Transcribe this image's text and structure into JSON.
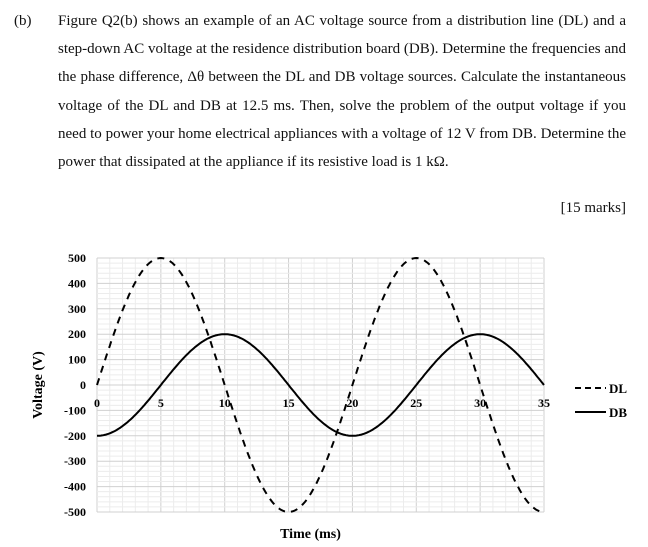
{
  "question": {
    "label": "(b)",
    "body": "Figure Q2(b) shows an example of an AC voltage source from a distribution line (DL) and a step-down AC voltage at the residence distribution board (DB). Determine the frequencies and the phase difference, Δθ between the DL and DB voltage sources. Calculate the instantaneous voltage of the DL and DB at 12.5 ms. Then, solve the problem of the output voltage if you need to power your home electrical appliances with a voltage of 12 V from DB. Determine the power that dissipated at the appliance if its resistive load is 1 kΩ.",
    "marks": "[15 marks]"
  },
  "chart_data": {
    "type": "line",
    "xlabel": "Time (ms)",
    "ylabel": "Voltage (V)",
    "xlim": [
      0,
      35
    ],
    "ylim": [
      -500,
      500
    ],
    "x_ticks": [
      "0",
      "5",
      "10",
      "15",
      "20",
      "25",
      "30",
      "35"
    ],
    "y_ticks": [
      "500",
      "400",
      "300",
      "200",
      "100",
      "0",
      "-100",
      "-200",
      "-300",
      "-400",
      "-500"
    ],
    "grid": true,
    "legend_position": "right",
    "series": [
      {
        "name": "DL",
        "style": "dashed",
        "color": "#000000",
        "x": [
          0,
          2.5,
          5,
          7.5,
          10,
          12.5,
          15,
          17.5,
          20,
          22.5,
          25,
          27.5,
          30,
          32.5,
          35
        ],
        "y": [
          0,
          354,
          500,
          354,
          0,
          -354,
          -500,
          -354,
          0,
          354,
          500,
          354,
          0,
          -354,
          -500
        ]
      },
      {
        "name": "DB",
        "style": "solid",
        "color": "#000000",
        "x": [
          0,
          2.5,
          5,
          7.5,
          10,
          12.5,
          15,
          17.5,
          20,
          22.5,
          25,
          27.5,
          30,
          32.5,
          35
        ],
        "y": [
          -200,
          -141,
          0,
          141,
          200,
          141,
          0,
          -141,
          -200,
          -141,
          0,
          141,
          200,
          141,
          0
        ]
      }
    ]
  }
}
